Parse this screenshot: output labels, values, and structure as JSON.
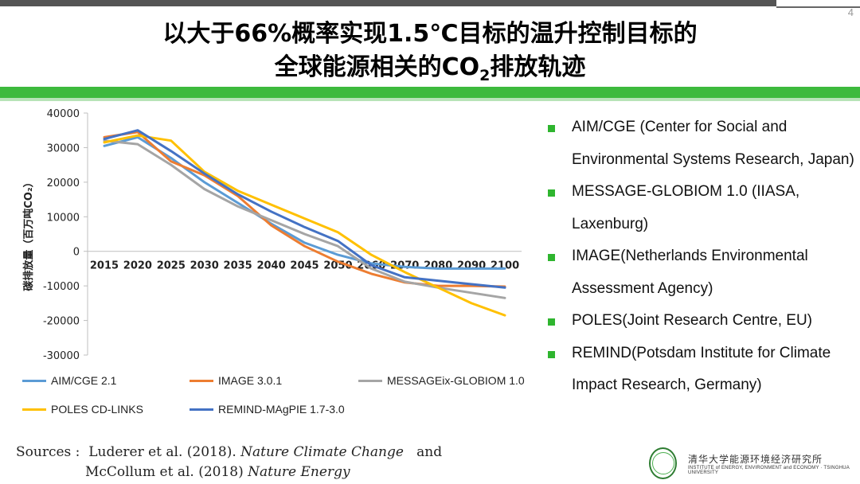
{
  "page_number": "4",
  "title": {
    "line1": "以大于66%概率实现1.5℃目标的温升控制目标的",
    "line2_main": "全球能源相关的CO",
    "line2_sub": "2",
    "line2_tail": "排放轨迹"
  },
  "bullets": [
    "AIM/CGE (Center for Social and Environmental Systems Research, Japan)",
    "MESSAGE-GLOBIOM 1.0 (IIASA, Laxenburg)",
    "IMAGE(Netherlands Environmental Assessment Agency)",
    "POLES(Joint Research Centre, EU)",
    "REMIND(Potsdam Institute for Climate Impact Research, Germany)"
  ],
  "sources": {
    "label": "Sources :",
    "ref1_authors": "Luderer et al. (2018).",
    "ref1_journal": "Nature Climate Change",
    "ref1_and": "and",
    "ref2_authors": "McCollum et al. (2018)",
    "ref2_journal": "Nature Energy"
  },
  "logo": {
    "cn": "清华大学能源环境经济研究所",
    "en": "INSTITUTE of ENERGY, ENVIRONMENT and ECONOMY · TSINGHUA UNIVERSITY"
  },
  "colors": {
    "accent_green": "#3dba3d",
    "bullet_green": "#2fb52f"
  },
  "chart_data": {
    "type": "line",
    "ylabel": "碳排放量（百万吨CO₂）",
    "ylim": [
      -30000,
      40000
    ],
    "yticks": [
      40000,
      30000,
      20000,
      10000,
      0,
      -10000,
      -20000,
      -30000
    ],
    "x": [
      2015,
      2020,
      2025,
      2030,
      2035,
      2040,
      2045,
      2050,
      2060,
      2070,
      2080,
      2090,
      2100
    ],
    "grid": false,
    "legend_position": "bottom",
    "series": [
      {
        "name": "AIM/CGE 2.1",
        "color": "#5b9bd5",
        "values": [
          30500,
          33000,
          27000,
          20000,
          14000,
          8000,
          2500,
          -1000,
          -3500,
          -4500,
          -5000,
          -5000,
          -5000
        ]
      },
      {
        "name": "IMAGE 3.0.1",
        "color": "#ed7d31",
        "values": [
          33000,
          34500,
          26000,
          22000,
          16000,
          7500,
          1500,
          -3000,
          -6500,
          -9000,
          -10000,
          -10000,
          -10200
        ]
      },
      {
        "name": "MESSAGEix-GLOBIOM 1.0",
        "color": "#a5a5a5",
        "values": [
          32000,
          31000,
          25000,
          18000,
          13000,
          9000,
          5000,
          1500,
          -5000,
          -8800,
          -10500,
          -12000,
          -13500
        ]
      },
      {
        "name": "POLES CD-LINKS",
        "color": "#ffc000",
        "values": [
          31500,
          33500,
          32000,
          23000,
          17500,
          13500,
          9500,
          5500,
          -1000,
          -6000,
          -10500,
          -15000,
          -18500
        ]
      },
      {
        "name": "REMIND-MAgPIE 1.7-3.0",
        "color": "#4472c4",
        "values": [
          32500,
          35000,
          29000,
          22500,
          16500,
          11500,
          7000,
          3000,
          -4000,
          -7500,
          -8500,
          -9500,
          -10500
        ]
      }
    ]
  }
}
